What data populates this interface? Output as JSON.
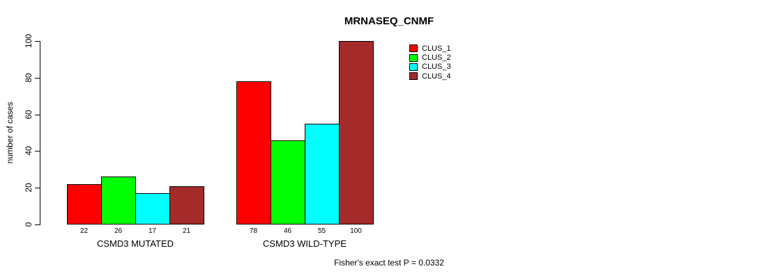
{
  "title": "MRNASEQ_CNMF",
  "footer": "Fisher's exact test P = 0.0332",
  "y_axis": {
    "label": "number of cases",
    "ticks": [
      0,
      20,
      40,
      60,
      80,
      100
    ]
  },
  "chart_data": {
    "type": "bar",
    "title": "MRNASEQ_CNMF",
    "xlabel": "",
    "ylabel": "number of cases",
    "ylim": [
      0,
      100
    ],
    "yticks": [
      0,
      20,
      40,
      60,
      80,
      100
    ],
    "grid": false,
    "legend_position": "top-right",
    "categories": [
      "CSMD3 MUTATED",
      "CSMD3 WILD-TYPE"
    ],
    "series": [
      {
        "name": "CLUS_1",
        "color": "#ff0000",
        "values": [
          22,
          78
        ]
      },
      {
        "name": "CLUS_2",
        "color": "#00ff00",
        "values": [
          26,
          46
        ]
      },
      {
        "name": "CLUS_3",
        "color": "#00ffff",
        "values": [
          17,
          55
        ]
      },
      {
        "name": "CLUS_4",
        "color": "#a52a2a",
        "values": [
          21,
          100
        ]
      }
    ],
    "bar_value_labels": [
      [
        22,
        26,
        17,
        21
      ],
      [
        78,
        46,
        55,
        100
      ]
    ],
    "annotation": "Fisher's exact test P = 0.0332"
  }
}
